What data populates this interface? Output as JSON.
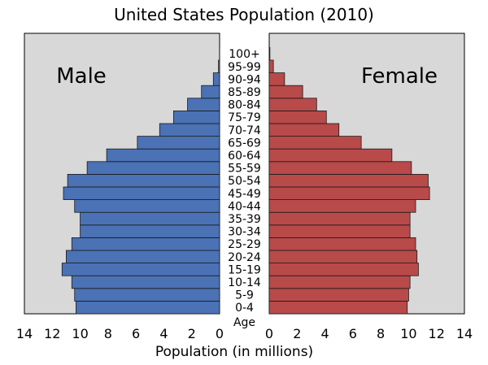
{
  "chart_data": {
    "type": "bar",
    "title": "United States Population (2010)",
    "xlabel": "Population (in millions)",
    "age_axis_label": "Age",
    "xlim": [
      0,
      14
    ],
    "xticks": [
      0,
      2,
      4,
      6,
      8,
      10,
      12,
      14
    ],
    "grid": false,
    "categories": [
      "0-4",
      "5-9",
      "10-14",
      "15-19",
      "20-24",
      "25-29",
      "30-34",
      "35-39",
      "40-44",
      "45-49",
      "50-54",
      "55-59",
      "60-64",
      "65-69",
      "70-74",
      "75-79",
      "80-84",
      "85-89",
      "90-94",
      "95-99",
      "100+"
    ],
    "series": [
      {
        "name": "Male",
        "values": [
          10.3,
          10.4,
          10.6,
          11.3,
          11.0,
          10.6,
          10.0,
          10.0,
          10.4,
          11.2,
          10.9,
          9.5,
          8.1,
          5.9,
          4.3,
          3.3,
          2.3,
          1.3,
          0.45,
          0.08,
          0.01
        ]
      },
      {
        "name": "Female",
        "values": [
          9.9,
          10.0,
          10.1,
          10.7,
          10.6,
          10.5,
          10.1,
          10.1,
          10.5,
          11.5,
          11.4,
          10.2,
          8.8,
          6.6,
          5.0,
          4.1,
          3.4,
          2.4,
          1.1,
          0.3,
          0.05
        ]
      }
    ],
    "colors": {
      "male_fill": "#4a72b5",
      "female_fill": "#b84a4a",
      "panel_bg": "#d8d8d8",
      "bar_stroke": "#1a1a1a"
    }
  }
}
